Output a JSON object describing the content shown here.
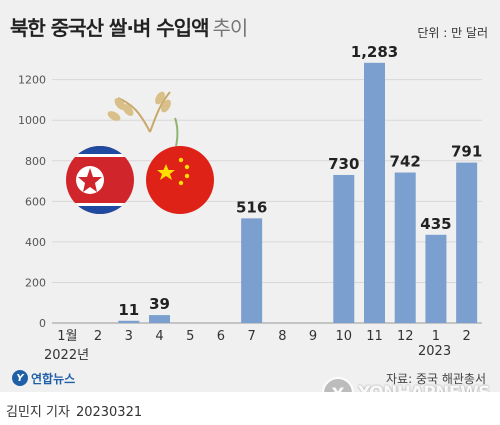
{
  "chart_data": {
    "type": "bar",
    "title": "북한 중국산 쌀·벼 수입액",
    "title_suffix": "추이",
    "unit": "단위 : 만 달러",
    "categories": [
      "1월",
      "2",
      "3",
      "4",
      "5",
      "6",
      "7",
      "8",
      "9",
      "10",
      "11",
      "12",
      "1",
      "2"
    ],
    "values": [
      0,
      0,
      11,
      39,
      0,
      0,
      516,
      0,
      0,
      730,
      1283,
      742,
      435,
      791
    ],
    "value_labels": [
      "",
      "",
      "11",
      "39",
      "",
      "",
      "516",
      "",
      "",
      "730",
      "1,283",
      "742",
      "435",
      "791"
    ],
    "yticks": [
      "0",
      "200",
      "400",
      "600",
      "800",
      "1000",
      "1200"
    ],
    "ylim": [
      0,
      1300
    ],
    "year_labels": [
      "2022년",
      "2023"
    ],
    "source": "자료: 중국 해관총서",
    "grid": true,
    "bar_color": "#7b9fcf"
  },
  "footer": {
    "logo_text": "연합뉴스",
    "author": "김민지 기자",
    "date": "20230321",
    "watermark": "YONHAPNEWS"
  }
}
